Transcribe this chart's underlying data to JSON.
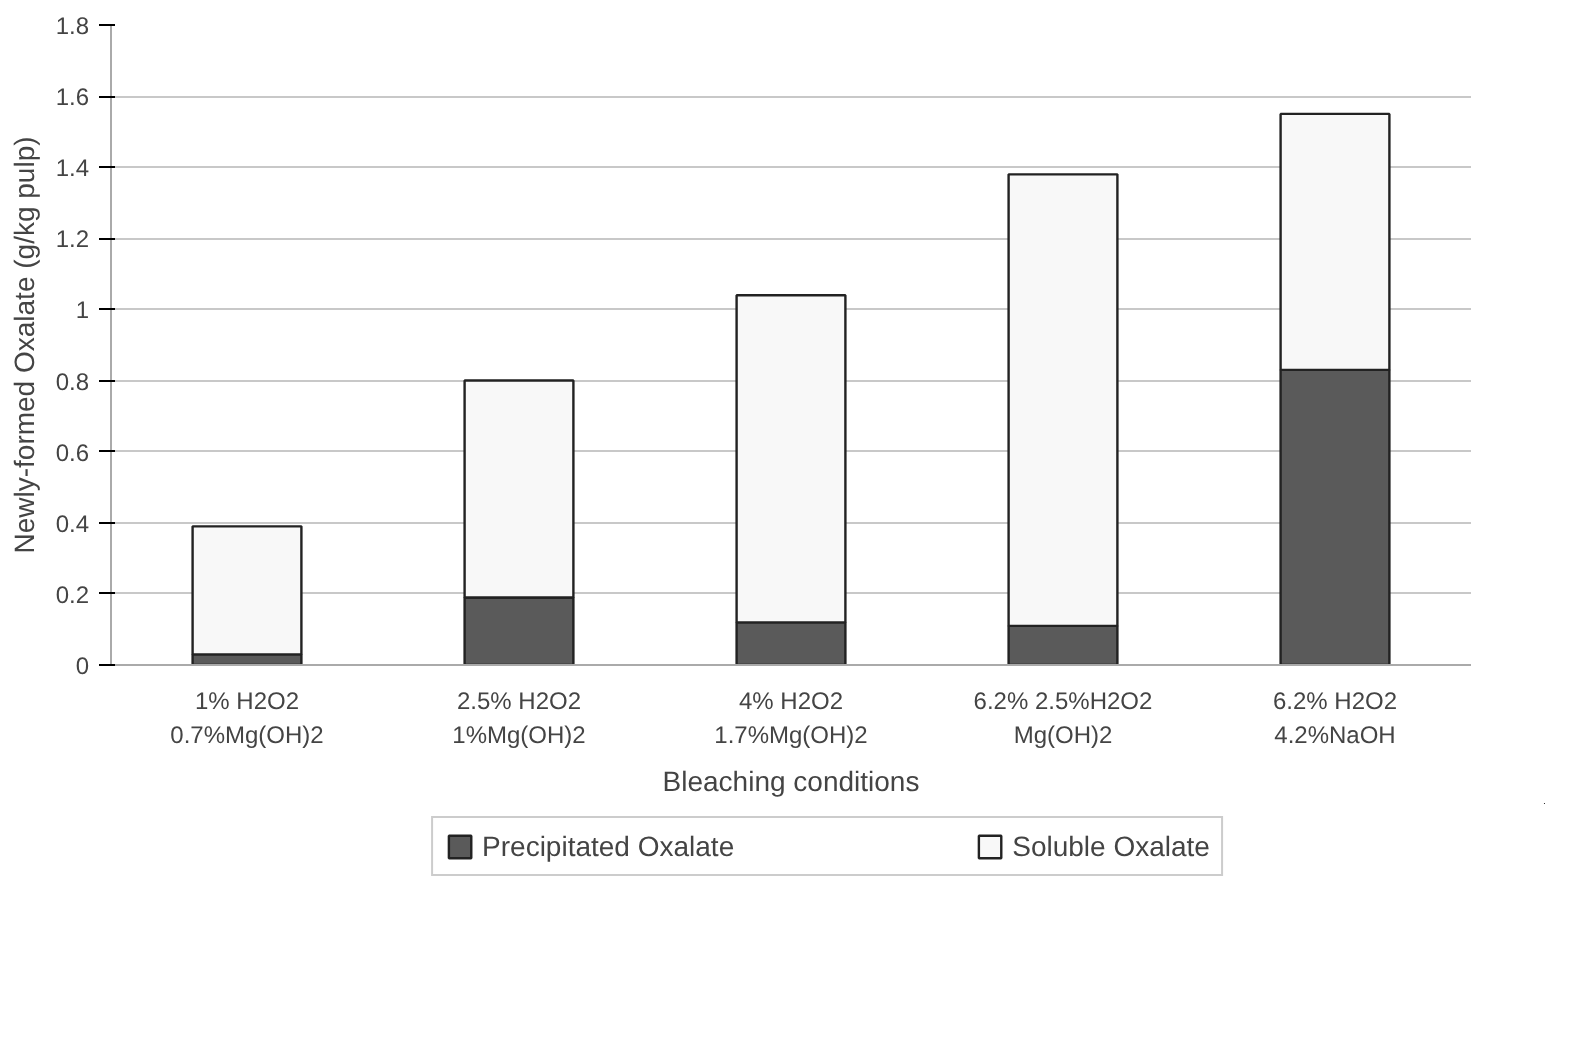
{
  "chart_data": {
    "type": "bar",
    "stacked": true,
    "xlabel": "Bleaching conditions",
    "ylabel": "Newly-formed Oxalate (g/kg pulp)",
    "categories": [
      "1% H2O2\n0.7%Mg(OH)2",
      "2.5% H2O2\n1%Mg(OH)2",
      "4% H2O2\n1.7%Mg(OH)2",
      "6.2% 2.5%H2O2\nMg(OH)2",
      "6.2% H2O2\n4.2%NaOH"
    ],
    "series": [
      {
        "name": "Precipitated Oxalate",
        "color": "#5a5a5a",
        "values": [
          0.03,
          0.19,
          0.12,
          0.11,
          0.83
        ]
      },
      {
        "name": "Soluble Oxalate",
        "color": "#f8f8f8",
        "values": [
          0.36,
          0.61,
          0.92,
          1.27,
          0.72
        ]
      }
    ],
    "ylim": [
      0,
      1.8
    ],
    "yticks": [
      0,
      0.2,
      0.4,
      0.6,
      0.8,
      1,
      1.2,
      1.4,
      1.6,
      1.8
    ],
    "grid": "y",
    "legend": "bottom"
  }
}
